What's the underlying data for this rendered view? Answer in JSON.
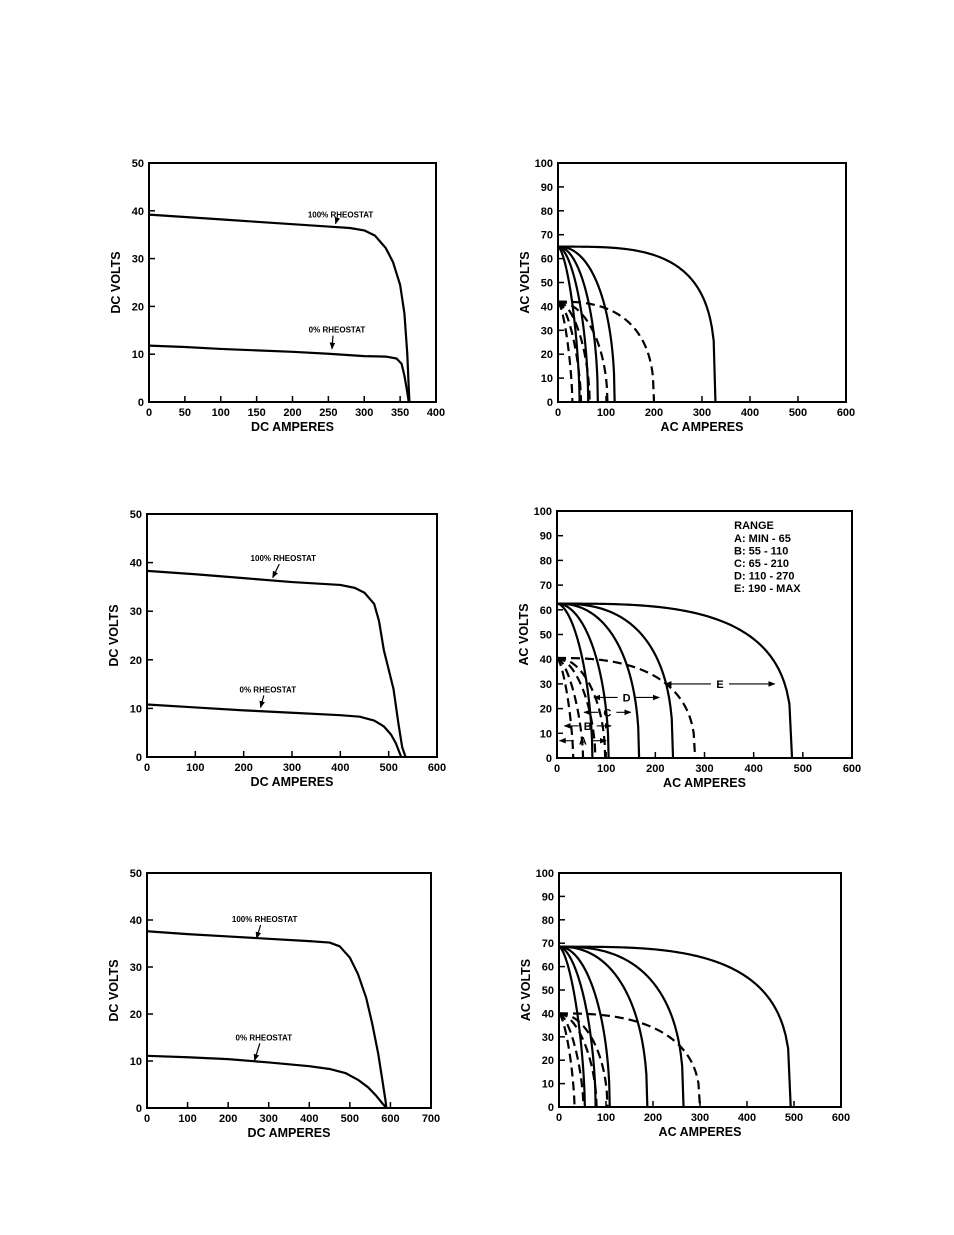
{
  "chart_data": [
    {
      "type": "line",
      "xlabel": "DC  AMPERES",
      "ylabel": "DC  VOLTS",
      "xlim": [
        0,
        400
      ],
      "ylim": [
        0,
        50
      ],
      "xticks": [
        "0",
        "50",
        "100",
        "150",
        "200",
        "250",
        "300",
        "350",
        "400"
      ],
      "yticks": [
        "0",
        "10",
        "20",
        "30",
        "40",
        "50"
      ],
      "annotations": [
        {
          "text": "100% RHEOSTAT",
          "at": [
            267,
            38.6
          ],
          "target": [
            260,
            37.3
          ]
        },
        {
          "text": "0% RHEOSTAT",
          "at": [
            262,
            14.5
          ],
          "target": [
            255,
            11.1
          ]
        }
      ],
      "series": [
        {
          "style": "solid",
          "points": [
            [
              0,
              39.2
            ],
            [
              50,
              38.7
            ],
            [
              100,
              38.2
            ],
            [
              150,
              37.7
            ],
            [
              200,
              37.2
            ],
            [
              250,
              36.7
            ],
            [
              280,
              36.4
            ],
            [
              300,
              35.9
            ],
            [
              315,
              34.8
            ],
            [
              330,
              32.2
            ],
            [
              340,
              29.3
            ],
            [
              350,
              24.5
            ],
            [
              356,
              18.5
            ],
            [
              360,
              10
            ],
            [
              362,
              3
            ],
            [
              363,
              0
            ]
          ]
        },
        {
          "style": "solid",
          "points": [
            [
              0,
              11.8
            ],
            [
              50,
              11.5
            ],
            [
              100,
              11.1
            ],
            [
              150,
              10.8
            ],
            [
              200,
              10.5
            ],
            [
              250,
              10.1
            ],
            [
              300,
              9.6
            ],
            [
              330,
              9.5
            ],
            [
              345,
              9.1
            ],
            [
              352,
              8
            ],
            [
              356,
              5.5
            ],
            [
              360,
              2
            ],
            [
              362,
              0
            ]
          ]
        }
      ]
    },
    {
      "type": "line",
      "xlabel": "AC  AMPERES",
      "ylabel": "AC  VOLTS",
      "xlim": [
        0,
        600
      ],
      "ylim": [
        0,
        100
      ],
      "xticks": [
        "0",
        "100",
        "200",
        "300",
        "400",
        "500",
        "600"
      ],
      "yticks": [
        "0",
        "10",
        "20",
        "30",
        "40",
        "50",
        "60",
        "70",
        "80",
        "90",
        "100"
      ],
      "series": [
        {
          "style": "solid",
          "V0": 65,
          "Imax": 328,
          "k": 3.5
        },
        {
          "style": "solid",
          "V0": 65,
          "Imax": 118,
          "k": 2.2
        },
        {
          "style": "solid",
          "V0": 65,
          "Imax": 83,
          "k": 2.0
        },
        {
          "style": "solid",
          "V0": 65,
          "Imax": 63,
          "k": 1.8
        },
        {
          "style": "solid",
          "V0": 65,
          "Imax": 45,
          "k": 1.6
        },
        {
          "style": "dashed",
          "V0": 42,
          "Imax": 200,
          "k": 2.6
        },
        {
          "style": "dashed",
          "V0": 42,
          "Imax": 103,
          "k": 2.0
        },
        {
          "style": "dashed",
          "V0": 42,
          "Imax": 66,
          "k": 1.8
        },
        {
          "style": "dashed",
          "V0": 42,
          "Imax": 48,
          "k": 1.6
        },
        {
          "style": "dashed",
          "V0": 42,
          "Imax": 30,
          "k": 1.5
        }
      ]
    },
    {
      "type": "line",
      "xlabel": "DC  AMPERES",
      "ylabel": "DC  VOLTS",
      "xlim": [
        0,
        600
      ],
      "ylim": [
        0,
        50
      ],
      "xticks": [
        "0",
        "100",
        "200",
        "300",
        "400",
        "500",
        "600"
      ],
      "yticks": [
        "0",
        "10",
        "20",
        "30",
        "40",
        "50"
      ],
      "annotations": [
        {
          "text": "100% RHEOSTAT",
          "at": [
            282,
            40.3
          ],
          "target": [
            260,
            36.9
          ]
        },
        {
          "text": "0% RHEOSTAT",
          "at": [
            250,
            13.3
          ],
          "target": [
            235,
            10.2
          ]
        }
      ],
      "series": [
        {
          "style": "solid",
          "points": [
            [
              0,
              38.3
            ],
            [
              100,
              37.6
            ],
            [
              200,
              36.8
            ],
            [
              300,
              36
            ],
            [
              400,
              35.4
            ],
            [
              430,
              34.8
            ],
            [
              450,
              33.8
            ],
            [
              470,
              31.5
            ],
            [
              480,
              28
            ],
            [
              490,
              22
            ],
            [
              500,
              18
            ],
            [
              510,
              14
            ],
            [
              520,
              7
            ],
            [
              528,
              2
            ],
            [
              535,
              0
            ]
          ]
        },
        {
          "style": "solid",
          "points": [
            [
              0,
              10.8
            ],
            [
              100,
              10.2
            ],
            [
              200,
              9.6
            ],
            [
              300,
              9.1
            ],
            [
              400,
              8.6
            ],
            [
              440,
              8.3
            ],
            [
              470,
              7.5
            ],
            [
              490,
              6.3
            ],
            [
              505,
              4.6
            ],
            [
              515,
              2.8
            ],
            [
              522,
              1
            ],
            [
              526,
              0
            ]
          ]
        }
      ]
    },
    {
      "type": "line",
      "xlabel": "AC  AMPERES",
      "ylabel": "AC  VOLTS",
      "xlim": [
        0,
        600
      ],
      "ylim": [
        0,
        100
      ],
      "xticks": [
        "0",
        "100",
        "200",
        "300",
        "400",
        "500",
        "600"
      ],
      "yticks": [
        "0",
        "10",
        "20",
        "30",
        "40",
        "50",
        "60",
        "70",
        "80",
        "90",
        "100"
      ],
      "legend": {
        "title": "RANGE",
        "entries": [
          "A:  MIN - 65",
          "B:  55 - 110",
          "C:  65 - 210",
          "D:  110 - 270",
          "E:  190 - MAX"
        ]
      },
      "range_markers": [
        {
          "label": "E",
          "y": 30,
          "x1": 220,
          "x2": 443
        },
        {
          "label": "D",
          "y": 24.5,
          "x1": 75,
          "x2": 208
        },
        {
          "label": "C",
          "y": 18.5,
          "x1": 55,
          "x2": 150
        },
        {
          "label": "B",
          "y": 13,
          "x1": 15,
          "x2": 110
        },
        {
          "label": "A",
          "y": 7,
          "x1": 5,
          "x2": 100
        }
      ],
      "series": [
        {
          "style": "solid",
          "V0": 62.5,
          "Imax": 478,
          "k": 3.2
        },
        {
          "style": "solid",
          "V0": 62.5,
          "Imax": 236,
          "k": 2.6
        },
        {
          "style": "solid",
          "V0": 62.5,
          "Imax": 167,
          "k": 2.3
        },
        {
          "style": "solid",
          "V0": 62.5,
          "Imax": 105,
          "k": 2.0
        },
        {
          "style": "solid",
          "V0": 62.5,
          "Imax": 72,
          "k": 1.8
        },
        {
          "style": "dashed",
          "V0": 40.5,
          "Imax": 281,
          "k": 2.6
        },
        {
          "style": "dashed",
          "V0": 40.5,
          "Imax": 98,
          "k": 2.0
        },
        {
          "style": "dashed",
          "V0": 40.5,
          "Imax": 78,
          "k": 1.8
        },
        {
          "style": "dashed",
          "V0": 40.5,
          "Imax": 53,
          "k": 1.6
        },
        {
          "style": "dashed",
          "V0": 40.5,
          "Imax": 33,
          "k": 1.5
        }
      ]
    },
    {
      "type": "line",
      "xlabel": "DC  AMPERES",
      "ylabel": "DC VOLTS",
      "xlim": [
        0,
        700
      ],
      "ylim": [
        0,
        50
      ],
      "xticks": [
        "0",
        "100",
        "200",
        "300",
        "400",
        "500",
        "600",
        "700"
      ],
      "yticks": [
        "0",
        "10",
        "20",
        "30",
        "40",
        "50"
      ],
      "annotations": [
        {
          "text": "100% RHEOSTAT",
          "at": [
            290,
            39.6
          ],
          "target": [
            270,
            36.1
          ]
        },
        {
          "text": "0% RHEOSTAT",
          "at": [
            288,
            14.4
          ],
          "target": [
            265,
            10.1
          ]
        }
      ],
      "series": [
        {
          "style": "solid",
          "points": [
            [
              0,
              37.6
            ],
            [
              100,
              37
            ],
            [
              200,
              36.5
            ],
            [
              300,
              36
            ],
            [
              400,
              35.5
            ],
            [
              450,
              35.2
            ],
            [
              475,
              34.4
            ],
            [
              500,
              32
            ],
            [
              520,
              28.5
            ],
            [
              540,
              23.5
            ],
            [
              555,
              18
            ],
            [
              570,
              11.5
            ],
            [
              580,
              6
            ],
            [
              588,
              1.5
            ],
            [
              590,
              0
            ]
          ]
        },
        {
          "style": "solid",
          "points": [
            [
              0,
              11.1
            ],
            [
              100,
              10.8
            ],
            [
              200,
              10.4
            ],
            [
              300,
              9.7
            ],
            [
              400,
              8.9
            ],
            [
              450,
              8.3
            ],
            [
              490,
              7.4
            ],
            [
              520,
              6
            ],
            [
              545,
              4.4
            ],
            [
              565,
              2.6
            ],
            [
              580,
              1
            ],
            [
              590,
              0
            ]
          ]
        }
      ]
    },
    {
      "type": "line",
      "xlabel": "AC  AMPERES",
      "ylabel": "AC  VOLTS",
      "xlim": [
        0,
        600
      ],
      "ylim": [
        0,
        100
      ],
      "xticks": [
        "0",
        "100",
        "200",
        "300",
        "400",
        "500",
        "600"
      ],
      "yticks": [
        "0",
        "10",
        "20",
        "30",
        "40",
        "50",
        "60",
        "70",
        "80",
        "90",
        "100"
      ],
      "series": [
        {
          "style": "solid",
          "V0": 68.5,
          "Imax": 493,
          "k": 3.3
        },
        {
          "style": "solid",
          "V0": 68.5,
          "Imax": 265,
          "k": 2.6
        },
        {
          "style": "solid",
          "V0": 68.5,
          "Imax": 188,
          "k": 2.3
        },
        {
          "style": "solid",
          "V0": 68.5,
          "Imax": 108,
          "k": 2.0
        },
        {
          "style": "solid",
          "V0": 68.5,
          "Imax": 78,
          "k": 1.8
        },
        {
          "style": "solid",
          "V0": 68.5,
          "Imax": 55,
          "k": 1.6
        },
        {
          "style": "dashed",
          "V0": 40,
          "Imax": 300,
          "k": 2.6
        },
        {
          "style": "dashed",
          "V0": 40,
          "Imax": 103,
          "k": 2.0
        },
        {
          "style": "dashed",
          "V0": 40,
          "Imax": 80,
          "k": 1.8
        },
        {
          "style": "dashed",
          "V0": 40,
          "Imax": 52,
          "k": 1.6
        },
        {
          "style": "dashed",
          "V0": 40,
          "Imax": 33,
          "k": 1.5
        }
      ]
    }
  ]
}
